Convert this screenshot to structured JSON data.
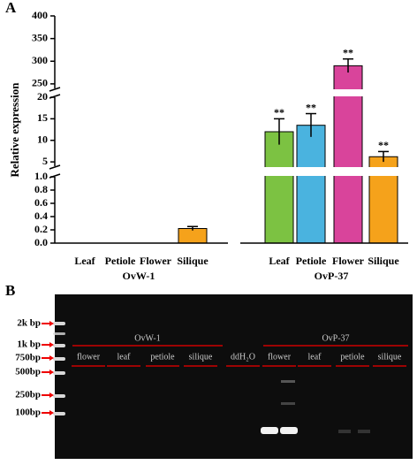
{
  "chart_data": {
    "type": "bar",
    "panel": "A",
    "ylabel": "Relative expression",
    "categories": [
      "Leaf",
      "Petiole",
      "Flower",
      "Silique",
      "Leaf",
      "Petiole",
      "Flower",
      "Silique"
    ],
    "groups": [
      {
        "label": "OvW-1",
        "members": [
          0,
          1,
          2,
          3
        ]
      },
      {
        "label": "OvP-37",
        "members": [
          4,
          5,
          6,
          7
        ]
      }
    ],
    "values": [
      0,
      0,
      0,
      0.22,
      12,
      13.5,
      290,
      6.2
    ],
    "errors": [
      0,
      0,
      0,
      0.03,
      3,
      2.7,
      15,
      1.2
    ],
    "colors": [
      "#f5a21b",
      "#f5a21b",
      "#f5a21b",
      "#f5a21b",
      "#7cc242",
      "#4ab3df",
      "#d9449b",
      "#f5a21b"
    ],
    "annotations": [
      null,
      null,
      null,
      null,
      "**",
      "**",
      "**",
      "**"
    ],
    "axis_segments": [
      {
        "ylim": [
          0,
          1
        ],
        "yticks": [
          0,
          {
            "value": 0,
            "label": "0.0"
          },
          0.2,
          0.4,
          0.6,
          0.8,
          {
            "value": 1,
            "label": "1.0"
          }
        ]
      },
      {
        "ylim": [
          4,
          20
        ],
        "yticks": [
          5,
          10,
          15,
          20
        ]
      },
      {
        "ylim": [
          240,
          400
        ],
        "yticks": [
          250,
          300,
          350,
          400
        ]
      }
    ]
  },
  "gel": {
    "panel": "B",
    "markers": [
      "2k bp",
      "1k bp",
      "750bp",
      "500bp",
      "250bp",
      "100bp"
    ],
    "groups": [
      "OvW-1",
      "OvP-37"
    ],
    "lanes": [
      "flower",
      "leaf",
      "petiole",
      "silique",
      "ddH₂O",
      "flower",
      "leaf",
      "petiole",
      "silique"
    ]
  }
}
